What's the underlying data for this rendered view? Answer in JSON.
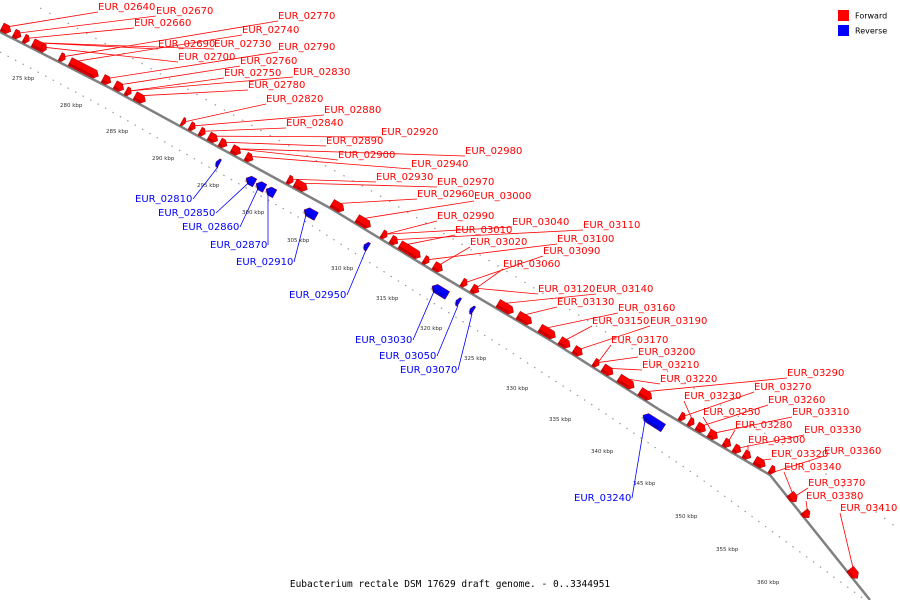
{
  "caption": "Eubacterium rectale DSM 17629 draft genome. - 0..3344951",
  "legend": [
    {
      "label": "Forward",
      "color": "#ff0000"
    },
    {
      "label": "Reverse",
      "color": "#0000ff"
    }
  ],
  "colors": {
    "forward": "#ff0000",
    "reverse": "#0000ff",
    "backbone": "#808080"
  },
  "ticks": [
    "275 kbp",
    "280 kbp",
    "285 kbp",
    "290 kbp",
    "295 kbp",
    "300 kbp",
    "305 kbp",
    "310 kbp",
    "315 kbp",
    "320 kbp",
    "325 kbp",
    "330 kbp",
    "335 kbp",
    "340 kbp",
    "345 kbp",
    "350 kbp",
    "355 kbp",
    "360 kbp"
  ],
  "forward_labels": [
    "EUR_02640",
    "EUR_02670",
    "EUR_02660",
    "EUR_02690",
    "EUR_02730",
    "EUR_02700",
    "EUR_02770",
    "EUR_02740",
    "EUR_02790",
    "EUR_02760",
    "EUR_02750",
    "EUR_02830",
    "EUR_02780",
    "EUR_02820",
    "EUR_02880",
    "EUR_02840",
    "EUR_02920",
    "EUR_02890",
    "EUR_02900",
    "EUR_02980",
    "EUR_02940",
    "EUR_02930",
    "EUR_02970",
    "EUR_02960",
    "EUR_03000",
    "EUR_02990",
    "EUR_03040",
    "EUR_03110",
    "EUR_03010",
    "EUR_03100",
    "EUR_03020",
    "EUR_03090",
    "EUR_03060",
    "EUR_03120",
    "EUR_03140",
    "EUR_03130",
    "EUR_03160",
    "EUR_03150",
    "EUR_03190",
    "EUR_03170",
    "EUR_03200",
    "EUR_03210",
    "EUR_03220",
    "EUR_03290",
    "EUR_03270",
    "EUR_03230",
    "EUR_03260",
    "EUR_03250",
    "EUR_03310",
    "EUR_03280",
    "EUR_03330",
    "EUR_03300",
    "EUR_03320",
    "EUR_03360",
    "EUR_03340",
    "EUR_03370",
    "EUR_03380",
    "EUR_03410"
  ],
  "reverse_labels": [
    "EUR_02810",
    "EUR_02850",
    "EUR_02860",
    "EUR_02870",
    "EUR_02910",
    "EUR_02950",
    "EUR_03030",
    "EUR_03050",
    "EUR_03070",
    "EUR_03240"
  ]
}
